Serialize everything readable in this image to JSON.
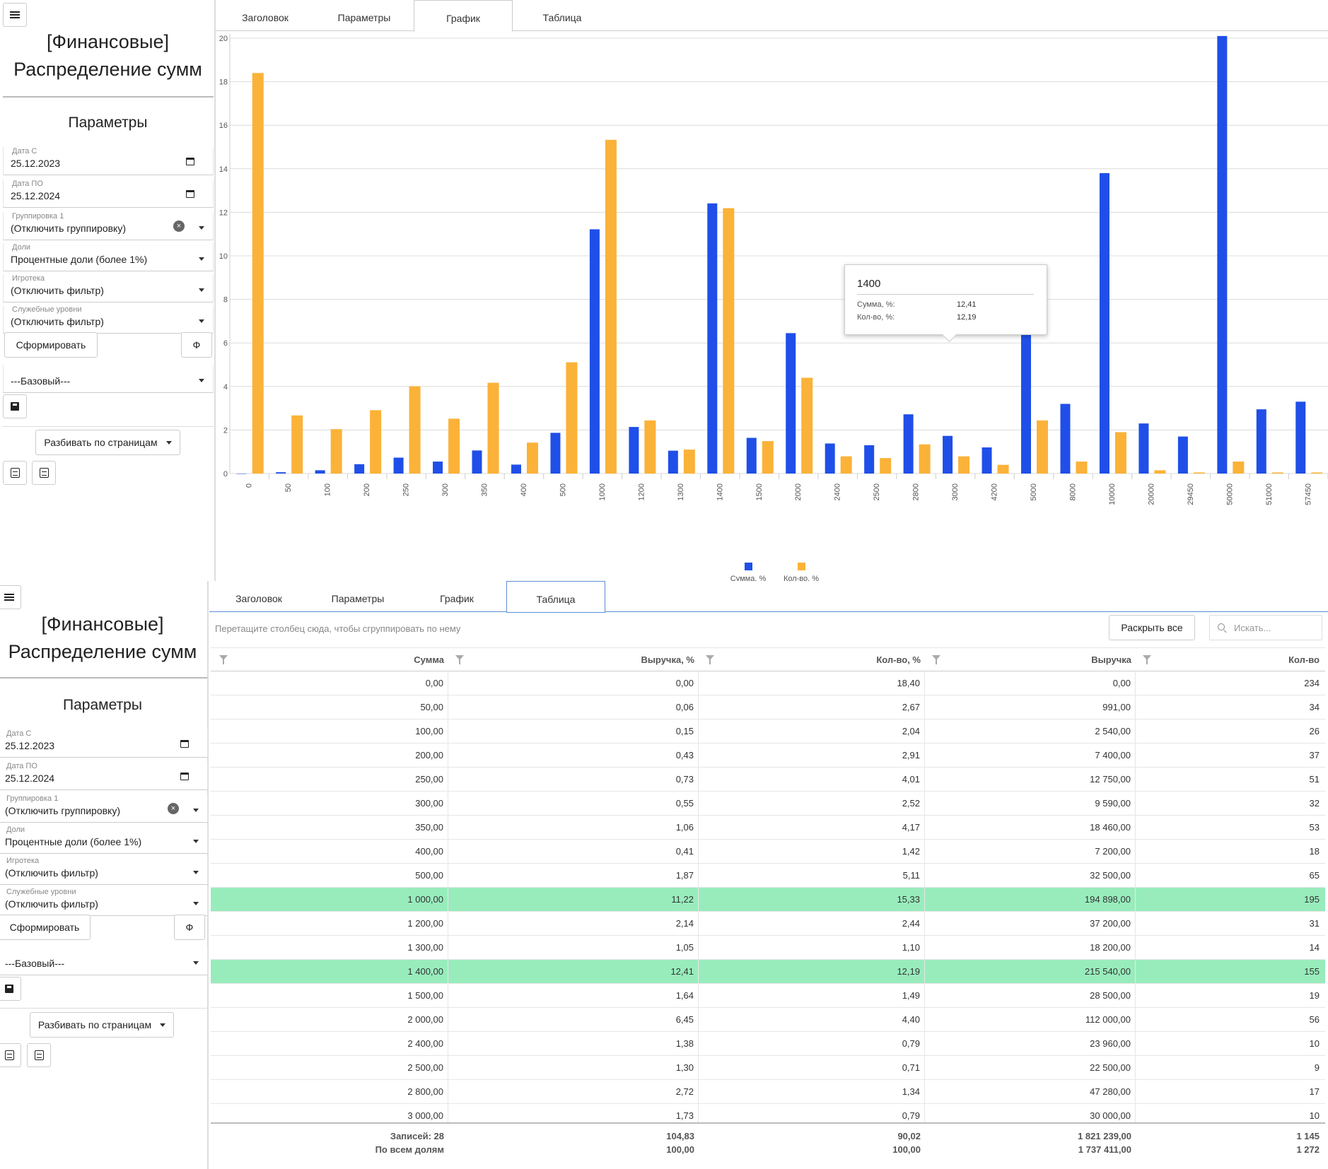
{
  "app": {
    "title_line1": "[Финансовые]",
    "title_line2": "Распределение сумм",
    "params_title": "Параметры"
  },
  "tabs": [
    {
      "label": "Заголовок"
    },
    {
      "label": "Параметры"
    },
    {
      "label": "График"
    },
    {
      "label": "Таблица"
    }
  ],
  "fields": {
    "date_from": {
      "label": "Дата С",
      "value": "25.12.2023"
    },
    "date_to": {
      "label": "Дата ПО",
      "value": "25.12.2024"
    },
    "grouping1": {
      "label": "Группировка 1",
      "value": "(Отключить группировку)"
    },
    "shares": {
      "label": "Доли",
      "value": "Процентные доли (более 1%)"
    },
    "game_library": {
      "label": "Игротека",
      "value": "(Отключить фильтр)"
    },
    "service_levels": {
      "label": "Служебные уровни",
      "value": "(Отключить фильтр)"
    },
    "preset": {
      "value": "---Базовый---"
    }
  },
  "buttons": {
    "generate": "Сформировать",
    "phi": "Ф",
    "paging": "Разбивать по страницам",
    "expand_all": "Раскрыть все"
  },
  "search": {
    "placeholder": "Искать..."
  },
  "group_hint": "Перетащите столбец сюда, чтобы сгруппировать по нему",
  "colors": {
    "sum": "#1f4fe8",
    "count": "#fbb238",
    "highlight": "#98ecbc"
  },
  "chart_data": {
    "type": "bar",
    "categories": [
      "0",
      "50",
      "100",
      "200",
      "250",
      "300",
      "350",
      "400",
      "500",
      "1000",
      "1200",
      "1300",
      "1400",
      "1500",
      "2000",
      "2400",
      "2500",
      "2800",
      "3000",
      "4200",
      "5000",
      "8000",
      "10000",
      "20000",
      "29450",
      "50000",
      "51000",
      "57450"
    ],
    "series": [
      {
        "name": "Сумма, %",
        "values": [
          0.0,
          0.06,
          0.15,
          0.43,
          0.73,
          0.55,
          1.06,
          0.41,
          1.87,
          11.22,
          2.14,
          1.05,
          12.41,
          1.64,
          6.45,
          1.38,
          1.3,
          2.72,
          1.73,
          1.2,
          8.95,
          3.2,
          13.8,
          2.3,
          1.7,
          20.1,
          2.95,
          3.3
        ]
      },
      {
        "name": "Кол-во, %",
        "values": [
          18.4,
          2.67,
          2.04,
          2.91,
          4.01,
          2.52,
          4.17,
          1.42,
          5.11,
          15.33,
          2.44,
          1.1,
          12.19,
          1.49,
          4.4,
          0.79,
          0.71,
          1.34,
          0.79,
          0.4,
          2.44,
          0.55,
          1.9,
          0.15,
          0.05,
          0.55,
          0.05,
          0.05
        ]
      }
    ],
    "ylim": [
      0,
      20
    ],
    "yticks": [
      0,
      2,
      4,
      6,
      8,
      10,
      12,
      14,
      16,
      18,
      20
    ],
    "grid": true,
    "legend_placement": "bottom-center",
    "tooltip": {
      "title": "1400",
      "rows": [
        {
          "label": "Сумма, %:",
          "value": "12,41"
        },
        {
          "label": "Кол-во, %:",
          "value": "12,19"
        }
      ]
    }
  },
  "table": {
    "columns": [
      "Сумма",
      "Выручка, %",
      "Кол-во, %",
      "Выручка",
      "Кол-во"
    ],
    "rows": [
      {
        "cells": [
          "0,00",
          "0,00",
          "18,40",
          "0,00",
          "234"
        ],
        "highlight": false
      },
      {
        "cells": [
          "50,00",
          "0,06",
          "2,67",
          "991,00",
          "34"
        ],
        "highlight": false
      },
      {
        "cells": [
          "100,00",
          "0,15",
          "2,04",
          "2 540,00",
          "26"
        ],
        "highlight": false
      },
      {
        "cells": [
          "200,00",
          "0,43",
          "2,91",
          "7 400,00",
          "37"
        ],
        "highlight": false
      },
      {
        "cells": [
          "250,00",
          "0,73",
          "4,01",
          "12 750,00",
          "51"
        ],
        "highlight": false
      },
      {
        "cells": [
          "300,00",
          "0,55",
          "2,52",
          "9 590,00",
          "32"
        ],
        "highlight": false
      },
      {
        "cells": [
          "350,00",
          "1,06",
          "4,17",
          "18 460,00",
          "53"
        ],
        "highlight": false
      },
      {
        "cells": [
          "400,00",
          "0,41",
          "1,42",
          "7 200,00",
          "18"
        ],
        "highlight": false
      },
      {
        "cells": [
          "500,00",
          "1,87",
          "5,11",
          "32 500,00",
          "65"
        ],
        "highlight": false
      },
      {
        "cells": [
          "1 000,00",
          "11,22",
          "15,33",
          "194 898,00",
          "195"
        ],
        "highlight": true
      },
      {
        "cells": [
          "1 200,00",
          "2,14",
          "2,44",
          "37 200,00",
          "31"
        ],
        "highlight": false
      },
      {
        "cells": [
          "1 300,00",
          "1,05",
          "1,10",
          "18 200,00",
          "14"
        ],
        "highlight": false
      },
      {
        "cells": [
          "1 400,00",
          "12,41",
          "12,19",
          "215 540,00",
          "155"
        ],
        "highlight": true
      },
      {
        "cells": [
          "1 500,00",
          "1,64",
          "1,49",
          "28 500,00",
          "19"
        ],
        "highlight": false
      },
      {
        "cells": [
          "2 000,00",
          "6,45",
          "4,40",
          "112 000,00",
          "56"
        ],
        "highlight": false
      },
      {
        "cells": [
          "2 400,00",
          "1,38",
          "0,79",
          "23 960,00",
          "10"
        ],
        "highlight": false
      },
      {
        "cells": [
          "2 500,00",
          "1,30",
          "0,71",
          "22 500,00",
          "9"
        ],
        "highlight": false
      },
      {
        "cells": [
          "2 800,00",
          "2,72",
          "1,34",
          "47 280,00",
          "17"
        ],
        "highlight": false
      },
      {
        "cells": [
          "3 000,00",
          "1,73",
          "0,79",
          "30 000,00",
          "10"
        ],
        "highlight": false
      }
    ],
    "footer": {
      "line1": [
        "Записей: 28",
        "104,83",
        "90,02",
        "1 821 239,00",
        "1 145"
      ],
      "line2": [
        "По всем долям",
        "100,00",
        "100,00",
        "1 737 411,00",
        "1 272"
      ]
    }
  }
}
